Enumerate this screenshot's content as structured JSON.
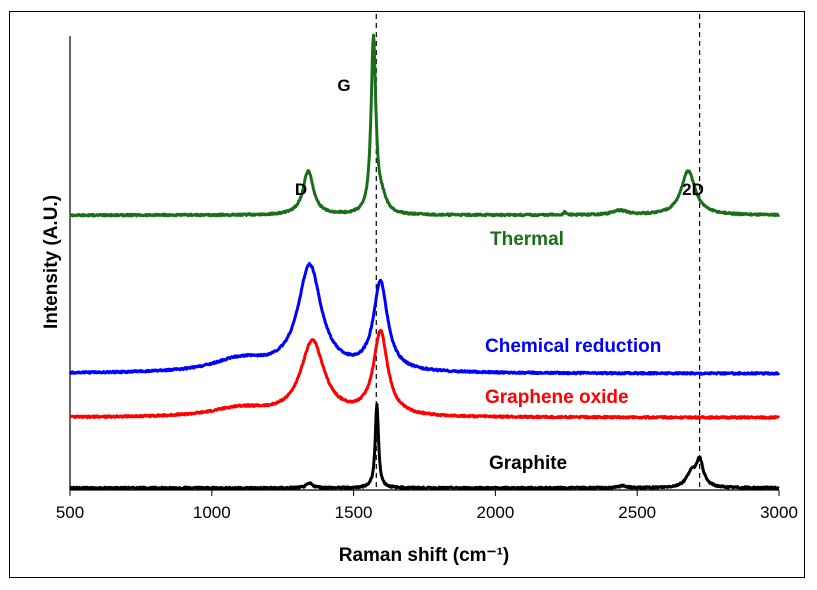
{
  "chart_data": {
    "type": "line",
    "xlabel": "Raman shift (cm⁻¹)",
    "ylabel": "Intensity (A.U.)",
    "xlim": [
      500,
      3000
    ],
    "xticks": [
      "500",
      "1000",
      "1500",
      "2000",
      "2500",
      "3000"
    ],
    "y_ticks_shown": false,
    "reference_lines_x": [
      1580,
      2720
    ],
    "peak_labels": [
      {
        "text": "D",
        "x": 1340
      },
      {
        "text": "G",
        "x": 1460
      },
      {
        "text": "2D",
        "x": 2700
      }
    ],
    "series": [
      {
        "name": "Thermal",
        "color": "#1a6e1a",
        "baseline": 0.62,
        "peaks": [
          {
            "center": 1340,
            "height": 0.1,
            "width": 22
          },
          {
            "center": 1570,
            "height": 0.4,
            "width": 10
          },
          {
            "center": 1600,
            "height": 0.03,
            "width": 20
          },
          {
            "center": 2440,
            "height": 0.01,
            "width": 30
          },
          {
            "center": 2245,
            "height": 0.008,
            "width": 4
          },
          {
            "center": 2680,
            "height": 0.1,
            "width": 30
          }
        ]
      },
      {
        "name": "Chemical reduction",
        "color": "#0000ff",
        "baseline": 0.26,
        "peaks": [
          {
            "center": 1345,
            "height": 0.24,
            "width": 50
          },
          {
            "center": 1595,
            "height": 0.2,
            "width": 30
          },
          {
            "center": 1100,
            "height": 0.03,
            "width": 120
          }
        ]
      },
      {
        "name": "Graphene oxide",
        "color": "#ff0000",
        "baseline": 0.16,
        "peaks": [
          {
            "center": 1355,
            "height": 0.17,
            "width": 50
          },
          {
            "center": 1595,
            "height": 0.19,
            "width": 30
          },
          {
            "center": 1100,
            "height": 0.02,
            "width": 120
          }
        ]
      },
      {
        "name": "Graphite",
        "color": "#000000",
        "baseline": 0.0,
        "peaks": [
          {
            "center": 1345,
            "height": 0.01,
            "width": 15
          },
          {
            "center": 1582,
            "height": 0.19,
            "width": 7
          },
          {
            "center": 2450,
            "height": 0.005,
            "width": 15
          },
          {
            "center": 2690,
            "height": 0.03,
            "width": 20
          },
          {
            "center": 2720,
            "height": 0.06,
            "width": 16
          }
        ]
      }
    ]
  }
}
